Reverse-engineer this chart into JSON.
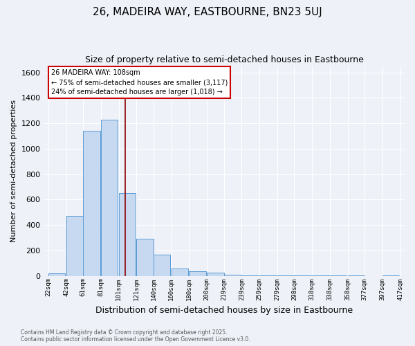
{
  "title1": "26, MADEIRA WAY, EASTBOURNE, BN23 5UJ",
  "title2": "Size of property relative to semi-detached houses in Eastbourne",
  "xlabel": "Distribution of semi-detached houses by size in Eastbourne",
  "ylabel": "Number of semi-detached properties",
  "bar_left_edges": [
    22,
    42,
    61,
    81,
    101,
    121,
    140,
    160,
    180,
    200,
    219,
    239,
    259,
    279,
    298,
    318,
    338,
    358,
    377,
    397
  ],
  "bar_widths": [
    19,
    19,
    19,
    19,
    19,
    19,
    19,
    19,
    19,
    19,
    19,
    19,
    19,
    19,
    19,
    19,
    19,
    19,
    19,
    19
  ],
  "bar_heights": [
    20,
    470,
    1140,
    1230,
    650,
    290,
    165,
    60,
    35,
    25,
    10,
    5,
    3,
    2,
    2,
    1,
    1,
    1,
    0,
    5
  ],
  "bar_color": "#c6d9f0",
  "bar_edge_color": "#5b9bd5",
  "tick_labels": [
    "22sqm",
    "42sqm",
    "61sqm",
    "81sqm",
    "101sqm",
    "121sqm",
    "140sqm",
    "160sqm",
    "180sqm",
    "200sqm",
    "219sqm",
    "239sqm",
    "259sqm",
    "279sqm",
    "298sqm",
    "318sqm",
    "338sqm",
    "358sqm",
    "377sqm",
    "397sqm",
    "417sqm"
  ],
  "tick_positions": [
    22,
    42,
    61,
    81,
    101,
    121,
    140,
    160,
    180,
    200,
    219,
    239,
    259,
    279,
    298,
    318,
    338,
    358,
    377,
    397,
    417
  ],
  "property_x": 108,
  "property_label": "26 MADEIRA WAY: 108sqm",
  "annotation_line1": "← 75% of semi-detached houses are smaller (3,117)",
  "annotation_line2": "24% of semi-detached houses are larger (1,018) →",
  "vline_color": "#8b0000",
  "annotation_box_color": "#ffffff",
  "annotation_box_edge": "#cc0000",
  "ylim": [
    0,
    1650
  ],
  "xlim_left": 17,
  "xlim_right": 422,
  "footer1": "Contains HM Land Registry data © Crown copyright and database right 2025.",
  "footer2": "Contains public sector information licensed under the Open Government Licence v3.0.",
  "bg_color": "#eef2f8",
  "plot_bg_color": "#eef2f8"
}
